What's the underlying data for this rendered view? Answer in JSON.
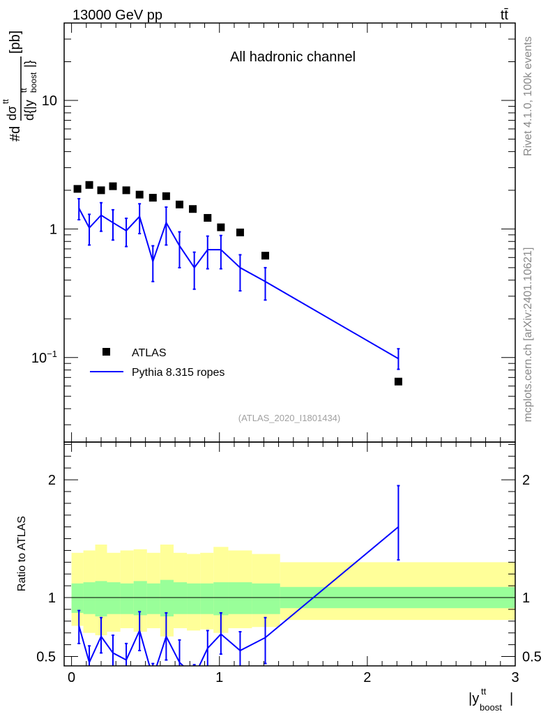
{
  "header": {
    "energy_label": "13000 GeV pp",
    "process_label": "tt̄"
  },
  "side_labels": {
    "rivet": "Rivet 4.1.0,  100k events",
    "site": "mcplots.cern.ch [arXiv:2401.10621]"
  },
  "chart_data": [
    {
      "type": "scatter",
      "panel": "main",
      "title": "All hadronic channel",
      "analysis_tag": "(ATLAS_2020_I1801434)",
      "ylabel": "#d dσ^tt / d{|y^tt_boost|} [pb]",
      "ylabel_parts": {
        "num_head": "#d",
        "num_sigma": "dσ",
        "num_sup": "tt",
        "den_head": "d{|y",
        "den_sup": "tt",
        "den_sub": "boost",
        "den_tail": "|}",
        "unit": "[pb]"
      },
      "yscale": "log",
      "xlim": [
        -0.05,
        3.0
      ],
      "ylim": [
        0.022,
        40
      ],
      "ytick_labels": [
        {
          "value": 10,
          "label": "10"
        },
        {
          "value": 1,
          "label": "1"
        },
        {
          "value": 0.1,
          "label": "10",
          "sup": "−1"
        }
      ],
      "legend_position": "bottom-left",
      "series": [
        {
          "name": "ATLAS",
          "marker": "square",
          "color": "#000000",
          "x": [
            0.04,
            0.12,
            0.2,
            0.28,
            0.37,
            0.46,
            0.55,
            0.64,
            0.73,
            0.82,
            0.92,
            1.01,
            1.14,
            1.31,
            2.21
          ],
          "y": [
            2.05,
            2.2,
            2.0,
            2.15,
            2.0,
            1.85,
            1.75,
            1.8,
            1.55,
            1.43,
            1.22,
            1.03,
            0.94,
            0.62,
            0.065
          ]
        },
        {
          "name": "Pythia 8.315 ropes",
          "marker": "line",
          "color": "#0000ff",
          "x": [
            0.05,
            0.12,
            0.2,
            0.28,
            0.37,
            0.46,
            0.55,
            0.64,
            0.73,
            0.83,
            0.92,
            1.01,
            1.14,
            1.31,
            2.21
          ],
          "y": [
            1.45,
            1.02,
            1.28,
            1.12,
            0.97,
            1.25,
            0.56,
            1.12,
            0.74,
            0.5,
            0.69,
            0.69,
            0.5,
            0.39,
            0.098
          ],
          "yerr_low": [
            0.27,
            0.27,
            0.32,
            0.3,
            0.24,
            0.33,
            0.17,
            0.37,
            0.24,
            0.16,
            0.2,
            0.2,
            0.17,
            0.11,
            0.017
          ],
          "yerr_high": [
            0.27,
            0.28,
            0.32,
            0.29,
            0.24,
            0.32,
            0.18,
            0.36,
            0.21,
            0.16,
            0.19,
            0.2,
            0.13,
            0.11,
            0.019
          ]
        }
      ]
    },
    {
      "type": "line",
      "panel": "ratio",
      "ylabel": "Ratio to ATLAS",
      "xlabel": "|y^tt_boost|",
      "xlabel_parts": {
        "head": "|y",
        "sup": "tt",
        "sub": "boost",
        "tail": "|"
      },
      "xlim": [
        -0.05,
        3.0
      ],
      "ylim": [
        0.42,
        2.32
      ],
      "xtick_labels": [
        {
          "value": 0,
          "label": "0"
        },
        {
          "value": 1,
          "label": "1"
        },
        {
          "value": 2,
          "label": "2"
        },
        {
          "value": 3,
          "label": "3"
        }
      ],
      "ytick_labels": [
        {
          "value": 2,
          "label": "2"
        },
        {
          "value": 1,
          "label": "1"
        },
        {
          "value": 0.5,
          "label": "0.5"
        }
      ],
      "reference_line": 1,
      "bands": {
        "bins": [
          [
            0.0,
            0.08
          ],
          [
            0.08,
            0.16
          ],
          [
            0.16,
            0.24
          ],
          [
            0.24,
            0.33
          ],
          [
            0.33,
            0.42
          ],
          [
            0.42,
            0.51
          ],
          [
            0.51,
            0.6
          ],
          [
            0.6,
            0.69
          ],
          [
            0.69,
            0.78
          ],
          [
            0.78,
            0.87
          ],
          [
            0.87,
            0.96
          ],
          [
            0.96,
            1.06
          ],
          [
            1.06,
            1.22
          ],
          [
            1.22,
            1.41
          ],
          [
            1.41,
            3.0
          ]
        ],
        "inner": [
          [
            0.87,
            1.12
          ],
          [
            0.86,
            1.13
          ],
          [
            0.84,
            1.14
          ],
          [
            0.86,
            1.13
          ],
          [
            0.86,
            1.12
          ],
          [
            0.85,
            1.14
          ],
          [
            0.86,
            1.12
          ],
          [
            0.84,
            1.15
          ],
          [
            0.86,
            1.13
          ],
          [
            0.86,
            1.12
          ],
          [
            0.86,
            1.12
          ],
          [
            0.85,
            1.13
          ],
          [
            0.86,
            1.13
          ],
          [
            0.86,
            1.12
          ],
          [
            0.91,
            1.09
          ]
        ],
        "outer": [
          [
            0.76,
            1.38
          ],
          [
            0.7,
            1.4
          ],
          [
            0.68,
            1.45
          ],
          [
            0.71,
            1.38
          ],
          [
            0.74,
            1.4
          ],
          [
            0.71,
            1.41
          ],
          [
            0.74,
            1.38
          ],
          [
            0.67,
            1.45
          ],
          [
            0.74,
            1.38
          ],
          [
            0.72,
            1.37
          ],
          [
            0.73,
            1.38
          ],
          [
            0.7,
            1.43
          ],
          [
            0.74,
            1.4
          ],
          [
            0.75,
            1.37
          ],
          [
            0.81,
            1.3
          ]
        ],
        "inner_color": "#99ff99",
        "outer_color": "#ffff99"
      },
      "series": [
        {
          "name": "Pythia 8.315 ropes / ATLAS",
          "color": "#0000ff",
          "x": [
            0.05,
            0.12,
            0.2,
            0.28,
            0.37,
            0.46,
            0.55,
            0.64,
            0.73,
            0.83,
            0.92,
            1.01,
            1.14,
            1.31,
            2.21
          ],
          "y": [
            0.76,
            0.45,
            0.67,
            0.53,
            0.47,
            0.72,
            0.32,
            0.67,
            0.45,
            0.33,
            0.57,
            0.69,
            0.55,
            0.66,
            1.6
          ],
          "yerr_low": [
            0.15,
            0.14,
            0.14,
            0.15,
            0.12,
            0.17,
            0.12,
            0.2,
            0.15,
            0.1,
            0.17,
            0.17,
            0.17,
            0.22,
            0.28
          ],
          "yerr_high": [
            0.13,
            0.14,
            0.16,
            0.15,
            0.14,
            0.16,
            0.12,
            0.2,
            0.19,
            0.1,
            0.15,
            0.18,
            0.16,
            0.17,
            0.35
          ]
        }
      ]
    }
  ]
}
